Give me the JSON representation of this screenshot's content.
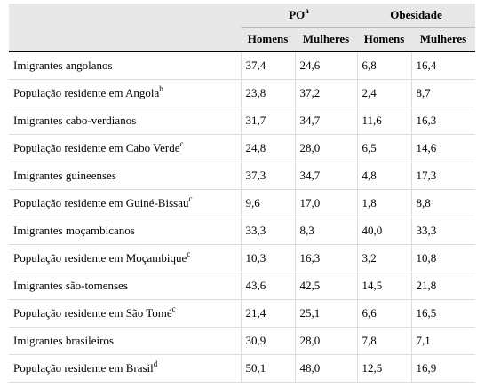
{
  "header": {
    "groups": [
      {
        "label": "PO",
        "note": "a"
      },
      {
        "label": "Obesidade"
      }
    ],
    "columns": [
      "Homens",
      "Mulheres",
      "Homens",
      "Mulheres"
    ]
  },
  "rows": [
    {
      "label": "Imigrantes angolanos",
      "values": [
        "37,4",
        "24,6",
        "6,8",
        "16,4"
      ]
    },
    {
      "label": "População residente em Angola",
      "note": "b",
      "values": [
        "23,8",
        "37,2",
        "2,4",
        "8,7"
      ]
    },
    {
      "label": "Imigrantes cabo-verdianos",
      "values": [
        "31,7",
        "34,7",
        "11,6",
        "16,3"
      ]
    },
    {
      "label": "População residente em Cabo Verde",
      "note": "c",
      "values": [
        "24,8",
        "28,0",
        "6,5",
        "14,6"
      ]
    },
    {
      "label": "Imigrantes guineenses",
      "values": [
        "37,3",
        "34,7",
        "4,8",
        "17,3"
      ]
    },
    {
      "label": "População residente em Guiné-Bissau",
      "note": "c",
      "values": [
        "9,6",
        "17,0",
        "1,8",
        "8,8"
      ]
    },
    {
      "label": "Imigrantes moçambicanos",
      "values": [
        "33,3",
        "8,3",
        "40,0",
        "33,3"
      ]
    },
    {
      "label": "População residente em Moçambique",
      "note": "c",
      "values": [
        "10,3",
        "16,3",
        "3,2",
        "10,8"
      ]
    },
    {
      "label": "Imigrantes são-tomenses",
      "values": [
        "43,6",
        "42,5",
        "14,5",
        "21,8"
      ]
    },
    {
      "label": "População residente em São Tomé",
      "note": "c",
      "values": [
        "21,4",
        "25,1",
        "6,6",
        "16,5"
      ]
    },
    {
      "label": "Imigrantes brasileiros",
      "values": [
        "30,9",
        "28,0",
        "7,8",
        "7,1"
      ]
    },
    {
      "label": "População residente em Brasil",
      "note": "d",
      "values": [
        "50,1",
        "48,0",
        "12,5",
        "16,9"
      ]
    }
  ]
}
